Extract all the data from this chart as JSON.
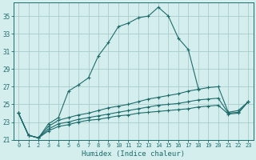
{
  "xlabel": "Humidex (Indice chaleur)",
  "bg_color": "#d4eeed",
  "line_color": "#1e6b6b",
  "grid_color": "#aacccc",
  "xlim": [
    -0.5,
    23.5
  ],
  "ylim": [
    21,
    36.5
  ],
  "yticks": [
    21,
    23,
    25,
    27,
    29,
    31,
    33,
    35
  ],
  "xticks": [
    0,
    1,
    2,
    3,
    4,
    5,
    6,
    7,
    8,
    9,
    10,
    11,
    12,
    13,
    14,
    15,
    16,
    17,
    18,
    19,
    20,
    21,
    22,
    23
  ],
  "s1x": [
    0,
    1,
    2,
    3,
    4,
    5,
    6,
    7,
    8,
    9,
    10,
    11,
    12,
    13,
    14,
    15,
    16,
    17,
    18
  ],
  "s1y": [
    24.0,
    21.5,
    21.2,
    22.8,
    23.5,
    26.5,
    27.2,
    28.0,
    30.5,
    32.0,
    33.8,
    34.2,
    34.8,
    35.0,
    36.0,
    35.0,
    32.5,
    31.2,
    26.8
  ],
  "s2x": [
    0,
    1,
    2,
    3,
    4,
    5,
    6,
    7,
    8,
    9,
    10,
    11,
    12,
    13,
    14,
    15,
    16,
    17,
    18,
    19,
    20,
    21,
    22,
    23
  ],
  "s2y": [
    24.0,
    21.5,
    21.2,
    22.5,
    23.2,
    23.5,
    23.8,
    24.0,
    24.3,
    24.6,
    24.8,
    25.0,
    25.3,
    25.6,
    25.8,
    26.0,
    26.2,
    26.5,
    26.7,
    26.9,
    27.0,
    24.1,
    24.3,
    25.3
  ],
  "s3x": [
    0,
    1,
    2,
    3,
    4,
    5,
    6,
    7,
    8,
    9,
    10,
    11,
    12,
    13,
    14,
    15,
    16,
    17,
    18,
    19,
    20,
    21,
    22,
    23
  ],
  "s3y": [
    24.0,
    21.5,
    21.2,
    22.2,
    22.8,
    23.0,
    23.3,
    23.5,
    23.7,
    23.9,
    24.1,
    24.3,
    24.5,
    24.7,
    24.9,
    25.0,
    25.1,
    25.3,
    25.5,
    25.6,
    25.7,
    24.0,
    24.1,
    25.3
  ],
  "s4x": [
    0,
    1,
    2,
    3,
    4,
    5,
    6,
    7,
    8,
    9,
    10,
    11,
    12,
    13,
    14,
    15,
    16,
    17,
    18,
    19,
    20,
    21,
    22,
    23
  ],
  "s4y": [
    24.0,
    21.5,
    21.2,
    22.0,
    22.5,
    22.7,
    23.0,
    23.2,
    23.3,
    23.5,
    23.7,
    23.8,
    24.0,
    24.1,
    24.2,
    24.3,
    24.4,
    24.5,
    24.7,
    24.8,
    24.9,
    23.9,
    24.0,
    25.3
  ]
}
